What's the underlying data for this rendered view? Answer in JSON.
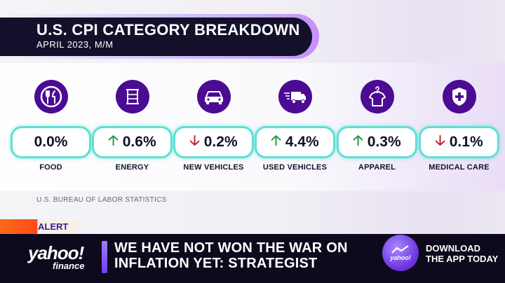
{
  "header": {
    "title": "U.S. CPI CATEGORY BREAKDOWN",
    "subtitle": "APRIL 2023, M/M"
  },
  "categories": [
    {
      "label": "FOOD",
      "value": "0.0%",
      "direction": "none",
      "icon": "utensils-icon"
    },
    {
      "label": "ENERGY",
      "value": "0.6%",
      "direction": "up",
      "icon": "fuel-barrel-icon"
    },
    {
      "label": "NEW VEHICLES",
      "value": "0.2%",
      "direction": "down",
      "icon": "car-icon"
    },
    {
      "label": "USED VEHICLES",
      "value": "4.4%",
      "direction": "up",
      "icon": "delivery-truck-icon"
    },
    {
      "label": "APPAREL",
      "value": "0.3%",
      "direction": "up",
      "icon": "shirt-hanger-icon"
    },
    {
      "label": "MEDICAL CARE",
      "value": "0.1%",
      "direction": "down",
      "icon": "medical-shield-icon"
    }
  ],
  "arrows": {
    "up": "🡡",
    "down": "🡣"
  },
  "source": "U.S. BUREAU OF LABOR STATISTICS",
  "ticker": {
    "alert_label": "ALERT",
    "logo_main": "yahoo!",
    "logo_sub": "finance",
    "headline_line1": "WE HAVE NOT WON THE WAR ON",
    "headline_line2": "INFLATION YET: STRATEGIST",
    "badge_text": "yahoo!",
    "download_line1": "DOWNLOAD",
    "download_line2": "THE APP TODAY"
  },
  "colors": {
    "icon_circle": "#4b0b93",
    "pill_border": "#5ee0d6",
    "up_arrow": "#1f9a4e",
    "down_arrow": "#c0202f",
    "header_bg": "#14102b",
    "alert_orange": "#ff4a1a"
  }
}
